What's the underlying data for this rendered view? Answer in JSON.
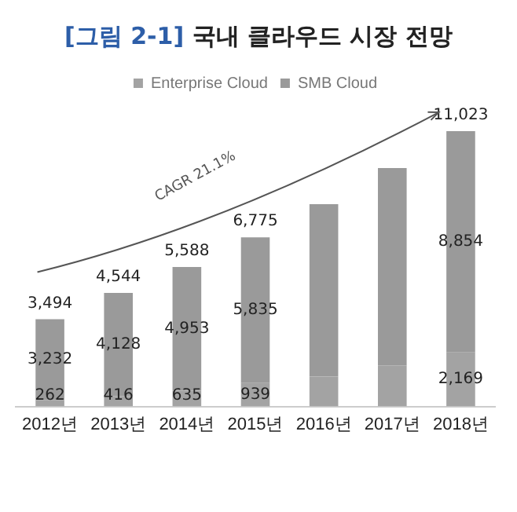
{
  "chart_data": {
    "type": "bar",
    "title": "[그림 2-1] 국내 클라우드 시장 전망",
    "categories": [
      "2012년",
      "2013년",
      "2014년",
      "2015년",
      "2016년",
      "2017년",
      "2018년"
    ],
    "stacked": true,
    "legend": "top",
    "grid": false,
    "series": [
      {
        "name": "Enterprise Cloud",
        "color": "#a3a3a3",
        "values": [
          262,
          416,
          635,
          939,
          1200,
          1650,
          2169
        ],
        "value_labels": [
          "262",
          "416",
          "635",
          "939",
          null,
          null,
          "2,169"
        ]
      },
      {
        "name": "SMB Cloud",
        "color": "#9a9a9a",
        "values": [
          3232,
          4128,
          4953,
          5835,
          6900,
          7900,
          8854
        ],
        "value_labels": [
          "3,232",
          "4,128",
          "4,953",
          "5,835",
          null,
          null,
          "8,854"
        ]
      }
    ],
    "totals": [
      "3,494",
      "4,544",
      "5,588",
      "6,775",
      null,
      null,
      "11,023"
    ],
    "annotations": [
      "CAGR 21.1%"
    ]
  }
}
